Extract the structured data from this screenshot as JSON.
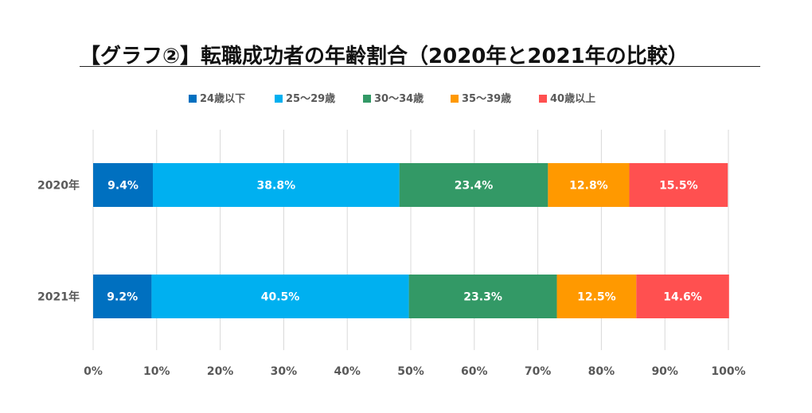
{
  "chart_data": {
    "type": "bar",
    "orientation": "horizontal-stacked-percent",
    "title": "【グラフ②】転職成功者の年齢割合（2020年と2021年の比較）",
    "categories": [
      "2020年",
      "2021年"
    ],
    "series": [
      {
        "name": "24歳以下",
        "color": "#0070C0",
        "values": [
          9.4,
          9.2
        ]
      },
      {
        "name": "25～29歳",
        "color": "#00B0F0",
        "values": [
          38.8,
          40.5
        ]
      },
      {
        "name": "30～34歳",
        "color": "#339966",
        "values": [
          23.4,
          23.3
        ]
      },
      {
        "name": "35～39歳",
        "color": "#FF9900",
        "values": [
          12.8,
          12.5
        ]
      },
      {
        "name": "40歳以上",
        "color": "#FF5050",
        "values": [
          15.5,
          14.6
        ]
      }
    ],
    "xlim": [
      0,
      100
    ],
    "x_ticks": [
      "0%",
      "10%",
      "20%",
      "30%",
      "40%",
      "50%",
      "60%",
      "70%",
      "80%",
      "90%",
      "100%"
    ],
    "grid": true,
    "legend_position": "top"
  }
}
